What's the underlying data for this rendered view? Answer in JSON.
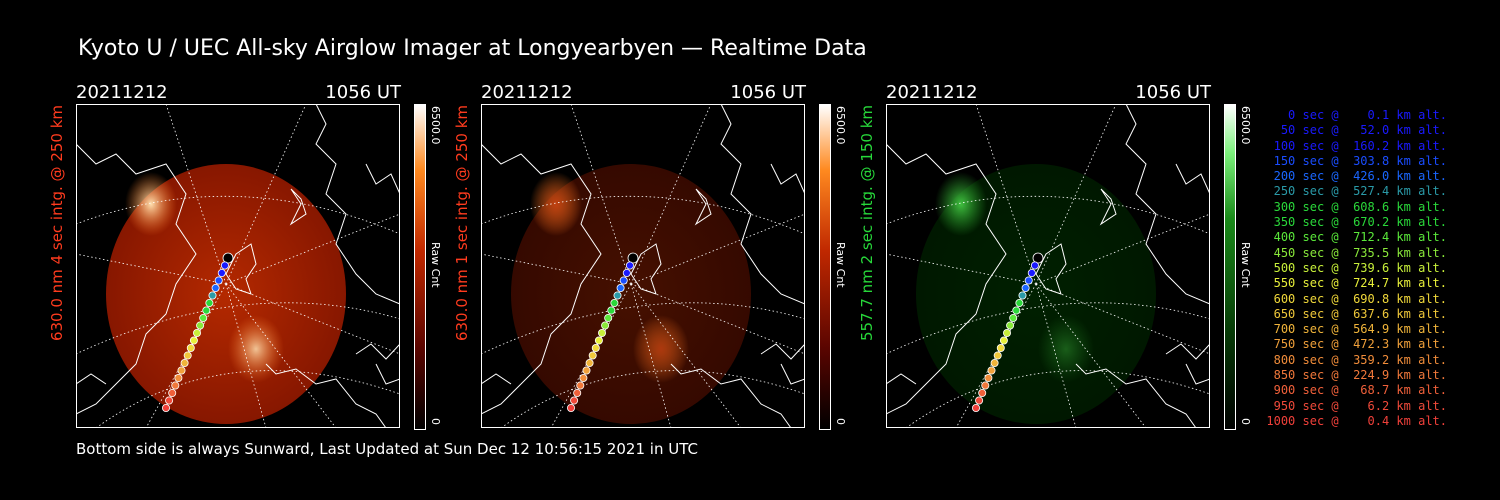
{
  "title": "Kyoto U / UEC All-sky Airglow Imager at Longyearbyen — Realtime Data",
  "footer": "Bottom side is always Sunward, Last Updated at Sun Dec 12 10:56:15 2021 in UTC",
  "panels": [
    {
      "date": "20211212",
      "time": "1056 UT",
      "ylabel": "630.0 nm 4 sec intg. @ 250 km",
      "label_color": "#ff3b1e",
      "cbar_max": "6500.0",
      "cbar_min": "0",
      "cbar_unit": "Raw Cnt",
      "palette": "red",
      "brightness": 0.9
    },
    {
      "date": "20211212",
      "time": "1056 UT",
      "ylabel": "630.0 nm 1 sec intg. @ 250 km",
      "label_color": "#ff3b1e",
      "cbar_max": "6500.0",
      "cbar_min": "0",
      "cbar_unit": "Raw Cnt",
      "palette": "red",
      "brightness": 0.35
    },
    {
      "date": "20211212",
      "time": "1056 UT",
      "ylabel": "557.7 nm 2 sec intg. @ 150 km",
      "label_color": "#27d83a",
      "cbar_max": "6500.0",
      "cbar_min": "0",
      "cbar_unit": "Raw Cnt",
      "palette": "green",
      "brightness": 0.4
    }
  ],
  "trajectory": [
    {
      "text": "0 sec @    0.1 km alt.",
      "color": "#1a1aff"
    },
    {
      "text": "50 sec @   52.0 km alt.",
      "color": "#1a1aff"
    },
    {
      "text": "100 sec @  160.2 km alt.",
      "color": "#1a1aff"
    },
    {
      "text": "150 sec @  303.8 km alt.",
      "color": "#1a4dff"
    },
    {
      "text": "200 sec @  426.0 km alt.",
      "color": "#1a66ff"
    },
    {
      "text": "250 sec @  527.4 km alt.",
      "color": "#2a9aa8"
    },
    {
      "text": "300 sec @  608.6 km alt.",
      "color": "#2ad83a"
    },
    {
      "text": "350 sec @  670.2 km alt.",
      "color": "#2ad83a"
    },
    {
      "text": "400 sec @  712.4 km alt.",
      "color": "#5ae83a"
    },
    {
      "text": "450 sec @  735.5 km alt.",
      "color": "#8ae83a"
    },
    {
      "text": "500 sec @  739.6 km alt.",
      "color": "#c8f03a"
    },
    {
      "text": "550 sec @  724.7 km alt.",
      "color": "#e8f03a"
    },
    {
      "text": "600 sec @  690.8 km alt.",
      "color": "#f0d83a"
    },
    {
      "text": "650 sec @  637.6 km alt.",
      "color": "#f0c83a"
    },
    {
      "text": "700 sec @  564.9 km alt.",
      "color": "#f0b43a"
    },
    {
      "text": "750 sec @  472.3 km alt.",
      "color": "#f0a03a"
    },
    {
      "text": "800 sec @  359.2 km alt.",
      "color": "#f08c3a"
    },
    {
      "text": "850 sec @  224.9 km alt.",
      "color": "#f0783a"
    },
    {
      "text": "900 sec @   68.7 km alt.",
      "color": "#f0603a"
    },
    {
      "text": "950 sec @    6.2 km alt.",
      "color": "#f04a3a"
    },
    {
      "text": "1000 sec @    0.4 km alt.",
      "color": "#f0403a"
    }
  ]
}
